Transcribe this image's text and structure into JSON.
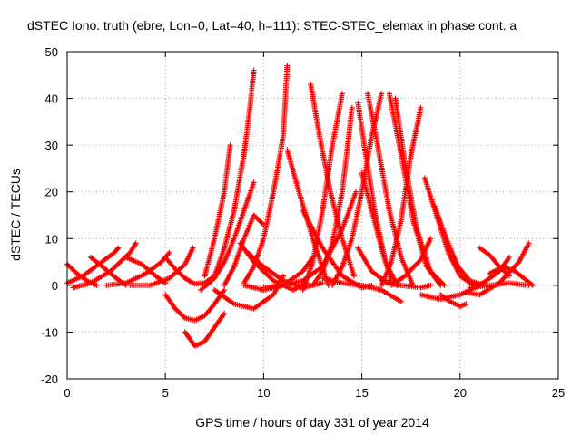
{
  "chart_data": {
    "type": "scatter",
    "title": "dSTEC Iono. truth (ebre, Lon=0, Lat=40, h=111): STEC-STEC_elemax in phase cont. a",
    "xlabel": "GPS time / hours of day 331 of year 2014",
    "ylabel": "dSTEC  / TECUs",
    "xlim": [
      0,
      25
    ],
    "ylim": [
      -20,
      50
    ],
    "xticks": [
      0,
      5,
      10,
      15,
      20,
      25
    ],
    "yticks": [
      -20,
      -10,
      0,
      10,
      20,
      30,
      40,
      50
    ],
    "grid": true,
    "marker": "plus",
    "color": "#ff0000",
    "arcs": [
      {
        "x": [
          0.0,
          0.5,
          1.0,
          1.5
        ],
        "y": [
          4.5,
          2.5,
          1.0,
          0.0
        ]
      },
      {
        "x": [
          0.0,
          0.8,
          1.6,
          2.4,
          2.6
        ],
        "y": [
          0.5,
          2.0,
          4.5,
          7.0,
          8.0
        ]
      },
      {
        "x": [
          0.3,
          1.2,
          2.2,
          3.2,
          3.5
        ],
        "y": [
          -0.5,
          0.5,
          3.0,
          7.0,
          9.0
        ]
      },
      {
        "x": [
          1.2,
          1.8,
          2.5,
          3.0
        ],
        "y": [
          6.0,
          4.0,
          1.5,
          0.0
        ]
      },
      {
        "x": [
          2.0,
          3.0,
          4.0,
          4.8,
          5.2
        ],
        "y": [
          0.0,
          0.5,
          2.5,
          5.0,
          7.0
        ]
      },
      {
        "x": [
          3.0,
          3.8,
          4.5,
          5.0
        ],
        "y": [
          6.0,
          4.5,
          2.0,
          0.5
        ]
      },
      {
        "x": [
          3.2,
          4.2,
          5.2,
          6.0,
          6.4
        ],
        "y": [
          0.0,
          0.0,
          1.5,
          4.5,
          8.0
        ]
      },
      {
        "x": [
          5.0,
          5.5,
          6.0,
          6.5,
          7.0,
          7.5
        ],
        "y": [
          6.0,
          3.5,
          1.5,
          0.3,
          0.5,
          2.0
        ]
      },
      {
        "x": [
          5.0,
          5.5,
          6.0,
          6.5,
          7.0,
          7.5,
          8.0
        ],
        "y": [
          -2.0,
          -5.0,
          -7.0,
          -7.5,
          -6.5,
          -4.0,
          -1.0
        ]
      },
      {
        "x": [
          6.0,
          6.5,
          7.0,
          7.5,
          8.0
        ],
        "y": [
          -10.0,
          -13.0,
          -12.0,
          -9.0,
          -6.0
        ]
      },
      {
        "x": [
          6.8,
          7.5,
          8.0,
          8.5,
          9.0,
          9.5
        ],
        "y": [
          -1.0,
          1.5,
          5.0,
          10.0,
          16.0,
          22.0
        ]
      },
      {
        "x": [
          7.0,
          7.5,
          8.0,
          8.3
        ],
        "y": [
          2.0,
          10.0,
          20.0,
          30.0
        ]
      },
      {
        "x": [
          7.5,
          8.0,
          8.5,
          9.0,
          9.3,
          9.5
        ],
        "y": [
          2.0,
          8.0,
          16.0,
          28.0,
          38.0,
          46.0
        ]
      },
      {
        "x": [
          8.0,
          8.5,
          9.0,
          9.5,
          10.0
        ],
        "y": [
          0.0,
          4.0,
          10.0,
          15.0,
          13.0
        ]
      },
      {
        "x": [
          7.5,
          8.5,
          9.5,
          10.5,
          11.0
        ],
        "y": [
          -1.0,
          -4.0,
          -5.0,
          -2.0,
          2.0
        ]
      },
      {
        "x": [
          9.0,
          9.5,
          10.0,
          10.5,
          11.0,
          11.2
        ],
        "y": [
          0.5,
          4.0,
          10.0,
          20.0,
          32.0,
          47.0
        ]
      },
      {
        "x": [
          9.2,
          10.0,
          11.0,
          12.0,
          13.0
        ],
        "y": [
          7.0,
          4.0,
          1.0,
          -0.5,
          0.5
        ]
      },
      {
        "x": [
          8.8,
          9.5,
          10.5,
          11.5,
          12.2
        ],
        "y": [
          9.0,
          5.0,
          1.0,
          -1.0,
          0.5
        ]
      },
      {
        "x": [
          9.0,
          10.0,
          11.0,
          12.0,
          12.5
        ],
        "y": [
          0.0,
          -1.0,
          0.0,
          3.0,
          6.0
        ]
      },
      {
        "x": [
          10.0,
          11.0,
          12.0,
          13.0,
          14.0,
          14.7
        ],
        "y": [
          -0.5,
          0.0,
          1.0,
          4.0,
          12.0,
          20.0
        ]
      },
      {
        "x": [
          11.2,
          11.8,
          12.5,
          13.3
        ],
        "y": [
          29.0,
          20.0,
          10.0,
          0.0
        ]
      },
      {
        "x": [
          12.4,
          12.8,
          13.4,
          14.0,
          14.6
        ],
        "y": [
          43.0,
          33.0,
          20.0,
          10.0,
          2.0
        ]
      },
      {
        "x": [
          12.0,
          12.5,
          13.0,
          13.5,
          14.0
        ],
        "y": [
          -1.0,
          5.0,
          16.0,
          30.0,
          41.0
        ]
      },
      {
        "x": [
          12.5,
          13.0,
          13.5,
          14.0,
          14.5
        ],
        "y": [
          0.0,
          3.0,
          9.0,
          20.0,
          38.0
        ]
      },
      {
        "x": [
          12.0,
          13.0,
          14.0,
          15.0,
          15.5
        ],
        "y": [
          16.0,
          8.0,
          2.0,
          -0.5,
          0.0
        ]
      },
      {
        "x": [
          13.5,
          14.0,
          14.5,
          15.0,
          15.5,
          16.0
        ],
        "y": [
          0.0,
          4.0,
          10.0,
          20.0,
          32.0,
          41.0
        ]
      },
      {
        "x": [
          14.8,
          15.2,
          15.7,
          16.2,
          16.8
        ],
        "y": [
          39.0,
          28.0,
          15.0,
          5.0,
          0.0
        ]
      },
      {
        "x": [
          15.3,
          15.8,
          16.4,
          17.0,
          17.6
        ],
        "y": [
          41.0,
          30.0,
          16.0,
          6.0,
          0.0
        ]
      },
      {
        "x": [
          15.0,
          15.5,
          16.0,
          16.5
        ],
        "y": [
          24.0,
          16.0,
          8.0,
          1.0
        ]
      },
      {
        "x": [
          14.8,
          15.5,
          16.3,
          17.0
        ],
        "y": [
          8.0,
          3.0,
          0.5,
          0.0
        ]
      },
      {
        "x": [
          16.0,
          16.5,
          17.0,
          17.5,
          18.0
        ],
        "y": [
          0.0,
          5.0,
          14.0,
          28.0,
          38.0
        ]
      },
      {
        "x": [
          16.4,
          17.0,
          17.6,
          18.3,
          19.0
        ],
        "y": [
          41.0,
          28.0,
          14.0,
          4.0,
          0.0
        ]
      },
      {
        "x": [
          16.7,
          17.2,
          17.8,
          18.5,
          19.2
        ],
        "y": [
          40.0,
          26.0,
          12.0,
          3.0,
          0.0
        ]
      },
      {
        "x": [
          13.0,
          14.0,
          15.0,
          16.0,
          17.0
        ],
        "y": [
          1.5,
          0.5,
          0.0,
          -1.0,
          -3.5
        ]
      },
      {
        "x": [
          16.5,
          17.2,
          18.0,
          18.5
        ],
        "y": [
          0.0,
          2.0,
          5.5,
          10.0
        ]
      },
      {
        "x": [
          18.2,
          18.8,
          19.4,
          20.0,
          20.7,
          21.2
        ],
        "y": [
          23.0,
          15.0,
          7.0,
          2.0,
          0.0,
          0.5
        ]
      },
      {
        "x": [
          18.7,
          19.3,
          19.9,
          20.5,
          21.2
        ],
        "y": [
          17.0,
          10.0,
          4.0,
          1.0,
          0.0
        ]
      },
      {
        "x": [
          19.0,
          19.5,
          20.0,
          20.3
        ],
        "y": [
          -2.0,
          -3.5,
          -4.5,
          -4.0
        ]
      },
      {
        "x": [
          18.0,
          19.0,
          20.0,
          21.0,
          22.0,
          22.5
        ],
        "y": [
          -2.0,
          -3.0,
          -2.0,
          0.0,
          3.0,
          6.0
        ]
      },
      {
        "x": [
          20.3,
          21.0,
          22.0,
          23.0,
          23.5
        ],
        "y": [
          -1.5,
          -2.0,
          0.5,
          5.0,
          9.0
        ]
      },
      {
        "x": [
          21.0,
          21.5,
          22.0,
          22.5
        ],
        "y": [
          8.0,
          6.5,
          4.0,
          2.0
        ]
      },
      {
        "x": [
          20.5,
          21.5,
          22.5,
          23.5
        ],
        "y": [
          -0.5,
          0.0,
          0.5,
          0.0
        ]
      },
      {
        "x": [
          21.5,
          22.2,
          22.8,
          23.4,
          23.7
        ],
        "y": [
          2.5,
          4.0,
          3.0,
          1.0,
          0.0
        ]
      },
      {
        "x": [
          16.0,
          17.0,
          18.0,
          18.5
        ],
        "y": [
          1.0,
          0.0,
          -0.5,
          0.0
        ]
      }
    ]
  }
}
